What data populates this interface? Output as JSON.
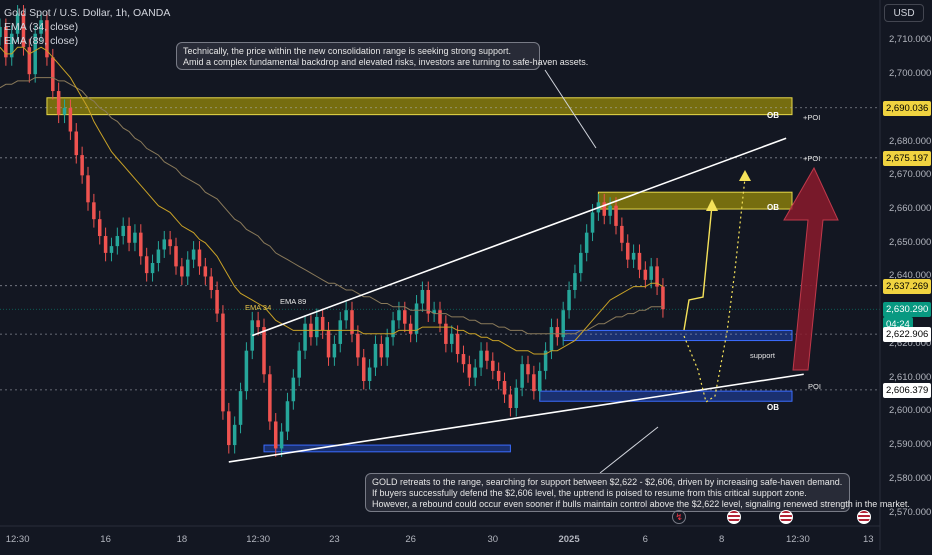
{
  "header": {
    "symbol_line": "Gold Spot / U.S. Dollar, 1h, OANDA",
    "ema34_legend": "EMA (34, close)",
    "ema89_legend": "EMA (89, close)",
    "currency_button": "USD"
  },
  "colors": {
    "background": "#131722",
    "up_candle": "#26a69a",
    "down_candle": "#ef5350",
    "ema34": "#c9a227",
    "ema89": "#8a7a5a",
    "ob_zone": "#c8b400",
    "support_zone": "#1e3a8a",
    "bull_arrow": "#8b1a2b",
    "path_arrow": "#f5e25a",
    "trendline": "#ffffff",
    "last_price_tag": "#089981"
  },
  "annotations": {
    "top_note": [
      "Technically, the price within the new consolidation range is seeking strong support.",
      "Amid a complex fundamental backdrop and elevated risks, investors are turning to safe-haven assets."
    ],
    "bottom_note": [
      "GOLD retreats to the range, searching for support between $2,622 - $2,606, driven by increasing safe-haven demand.",
      "If buyers successfully defend the $2,606 level, the uptrend is poised to resume from this critical support zone.",
      "However, a rebound could occur even sooner if bulls maintain control above the $2,622 level, signaling renewed strength in the market."
    ],
    "ob_label": "OB",
    "poi_label": "+POI",
    "poi_plain": "POI",
    "support_label": "support",
    "ema34_label": "EMA 34",
    "ema89_label": "EMA 89"
  },
  "chart_data": {
    "type": "candlestick",
    "title": "Gold Spot / U.S. Dollar, 1h, OANDA",
    "y_axis": {
      "ticks": [
        2570,
        2580,
        2590,
        2600,
        2610,
        2620,
        2630,
        2640,
        2650,
        2660,
        2670,
        2680,
        2690,
        2700,
        2710
      ],
      "tick_labels": [
        "2,570.000",
        "2,580.000",
        "2,590.000",
        "2,600.000",
        "2,610.000",
        "2,620.000",
        "2,630.000",
        "2,640.000",
        "2,650.000",
        "2,660.000",
        "2,670.000",
        "2,680.000",
        "2,690.000",
        "2,700.000",
        "2,710.000"
      ],
      "range": [
        2566,
        2722
      ]
    },
    "x_axis": {
      "tick_labels": [
        "12:30",
        "16",
        "18",
        "12:30",
        "23",
        "26",
        "30",
        "2025",
        "6",
        "8",
        "12:30",
        "13"
      ],
      "tick_index": [
        3,
        18,
        31,
        44,
        57,
        70,
        84,
        97,
        110,
        123,
        136,
        148
      ],
      "index_range": [
        0,
        150
      ]
    },
    "price_levels": [
      {
        "value": 2690.036,
        "label": "2,690.036",
        "style": "dashed"
      },
      {
        "value": 2675.197,
        "label": "2,675.197",
        "style": "dashed"
      },
      {
        "value": 2637.269,
        "label": "2,637.269",
        "style": "dashed"
      },
      {
        "value": 2630.29,
        "label": "2,630.290",
        "style": "last",
        "countdown": "04:24"
      },
      {
        "value": 2622.906,
        "label": "2,622.906",
        "style": "dashed"
      },
      {
        "value": 2606.379,
        "label": "2,606.379",
        "style": "dashed"
      }
    ],
    "candles_close": [
      2714,
      2705,
      2712,
      2718,
      2708,
      2700,
      2712,
      2716,
      2705,
      2695,
      2688,
      2690,
      2683,
      2676,
      2670,
      2662,
      2657,
      2652,
      2647,
      2649,
      2652,
      2655,
      2650,
      2653,
      2646,
      2641,
      2644,
      2648,
      2651,
      2649,
      2643,
      2640,
      2645,
      2648,
      2643,
      2640,
      2636,
      2629,
      2600,
      2590,
      2596,
      2606,
      2618,
      2627,
      2625,
      2611,
      2597,
      2589,
      2594,
      2603,
      2610,
      2618,
      2626,
      2622,
      2628,
      2624,
      2616,
      2620,
      2627,
      2630,
      2623,
      2616,
      2609,
      2613,
      2620,
      2616,
      2622,
      2627,
      2630,
      2626,
      2623,
      2632,
      2636,
      2629,
      2630,
      2626,
      2620,
      2623,
      2617,
      2614,
      2610,
      2613,
      2618,
      2615,
      2612,
      2609,
      2605,
      2601,
      2607,
      2614,
      2611,
      2606,
      2612,
      2618,
      2625,
      2622,
      2630,
      2636,
      2641,
      2647,
      2653,
      2659,
      2662,
      2658,
      2661,
      2655,
      2650,
      2645,
      2647,
      2642,
      2639,
      2643,
      2637,
      2630.29
    ],
    "ema34_close": [
      2708,
      2706,
      2706,
      2708,
      2708,
      2706,
      2707,
      2708,
      2707,
      2705,
      2703,
      2701,
      2699,
      2696,
      2693,
      2690,
      2686,
      2683,
      2680,
      2677,
      2675,
      2673,
      2671,
      2669,
      2667,
      2665,
      2663,
      2661,
      2660,
      2659,
      2657,
      2655,
      2654,
      2653,
      2651,
      2650,
      2648,
      2646,
      2643,
      2640,
      2637,
      2635,
      2634,
      2633,
      2632,
      2631,
      2629,
      2627,
      2626,
      2625,
      2624,
      2624,
      2624,
      2624,
      2624,
      2624,
      2624,
      2624,
      2624,
      2624,
      2624,
      2624,
      2623,
      2623,
      2623,
      2623,
      2623,
      2623,
      2624,
      2624,
      2624,
      2624,
      2625,
      2625,
      2625,
      2625,
      2625,
      2625,
      2624,
      2624,
      2623,
      2623,
      2622,
      2622,
      2621,
      2621,
      2620,
      2619,
      2618,
      2618,
      2618,
      2617,
      2617,
      2617,
      2618,
      2618,
      2619,
      2620,
      2621,
      2623,
      2625,
      2627,
      2629,
      2631,
      2633,
      2634,
      2635,
      2636,
      2637,
      2637,
      2637,
      2638,
      2638,
      2637
    ],
    "ema89_close": [
      2696,
      2697,
      2697,
      2698,
      2698,
      2698,
      2699,
      2699,
      2699,
      2699,
      2698,
      2698,
      2697,
      2696,
      2695,
      2693,
      2692,
      2690,
      2689,
      2687,
      2686,
      2684,
      2683,
      2681,
      2680,
      2678,
      2677,
      2676,
      2674,
      2673,
      2672,
      2670,
      2669,
      2668,
      2667,
      2665,
      2664,
      2663,
      2661,
      2659,
      2657,
      2656,
      2654,
      2653,
      2652,
      2650,
      2649,
      2647,
      2646,
      2645,
      2644,
      2643,
      2642,
      2641,
      2640,
      2639,
      2638,
      2638,
      2637,
      2636,
      2636,
      2635,
      2634,
      2634,
      2633,
      2632,
      2632,
      2631,
      2631,
      2631,
      2630,
      2630,
      2630,
      2630,
      2629,
      2629,
      2629,
      2628,
      2628,
      2628,
      2627,
      2627,
      2626,
      2626,
      2626,
      2625,
      2625,
      2624,
      2624,
      2624,
      2623,
      2623,
      2623,
      2623,
      2623,
      2623,
      2623,
      2623,
      2623,
      2624,
      2624,
      2625,
      2626,
      2626,
      2627,
      2628,
      2628,
      2629,
      2629,
      2630,
      2630,
      2631,
      2631,
      2631
    ],
    "zones": [
      {
        "name": "OB",
        "type": "order-block",
        "price_top": 2693,
        "price_bottom": 2688,
        "x_from": 8,
        "x_to": 135
      },
      {
        "name": "OB",
        "type": "order-block",
        "price_top": 2665,
        "price_bottom": 2660,
        "x_from": 102,
        "x_to": 135
      },
      {
        "name": "support",
        "type": "support",
        "price_top": 2624,
        "price_bottom": 2621,
        "x_from": 96,
        "x_to": 135
      },
      {
        "name": "OB",
        "type": "support",
        "price_top": 2606,
        "price_bottom": 2603,
        "x_from": 92,
        "x_to": 135
      },
      {
        "name": "",
        "type": "support",
        "price_top": 2590,
        "price_bottom": 2588,
        "x_from": 45,
        "x_to": 87
      }
    ],
    "trendlines": [
      {
        "name": "upper-channel",
        "from": {
          "x": 43,
          "y": 2622.5
        },
        "to": {
          "x": 134,
          "y": 2681
        }
      },
      {
        "name": "lower-channel",
        "from": {
          "x": 39,
          "y": 2585
        },
        "to": {
          "x": 137,
          "y": 2611
        }
      }
    ]
  }
}
